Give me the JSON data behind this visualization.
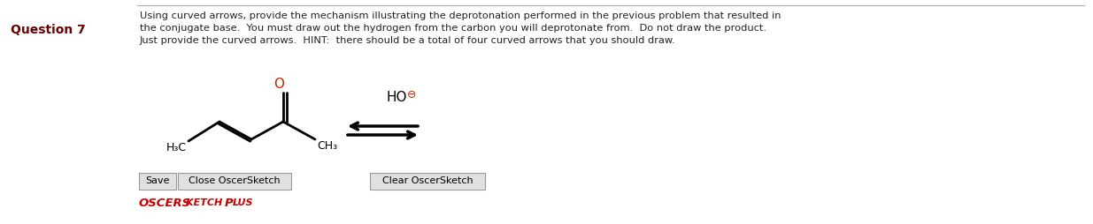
{
  "background_color": "#ffffff",
  "question_label": "Question 7",
  "question_label_color": "#6b0000",
  "question_label_fontsize": 10,
  "question_label_bold": true,
  "body_text_line1": "Using curved arrows, provide the mechanism illustrating the deprotonation performed in the previous problem that resulted in",
  "body_text_line2": "the conjugate base.  You must draw out the hydrogen from the carbon you will deprotonate from.  Do not draw the product.",
  "body_text_line3": "Just provide the curved arrows.  HINT:  there should be a total of four curved arrows that you should draw.",
  "body_text_color": "#222222",
  "body_text_fontsize": 8.2,
  "divider_color": "#aaaaaa",
  "button1_text": "Save",
  "button2_text": "Close OscerSketch",
  "button3_text": "Clear OscerSketch",
  "oscer_text": "OSCER",
  "sketch_text": " S",
  "sketch_text2": "KETCH ",
  "sketch_text3": "P",
  "sketch_text4": "LUS",
  "oscer_color": "#cc0000",
  "sketch_color": "#cc0000",
  "o_color": "#cc2200",
  "ho_minus_color": "#cc2200"
}
